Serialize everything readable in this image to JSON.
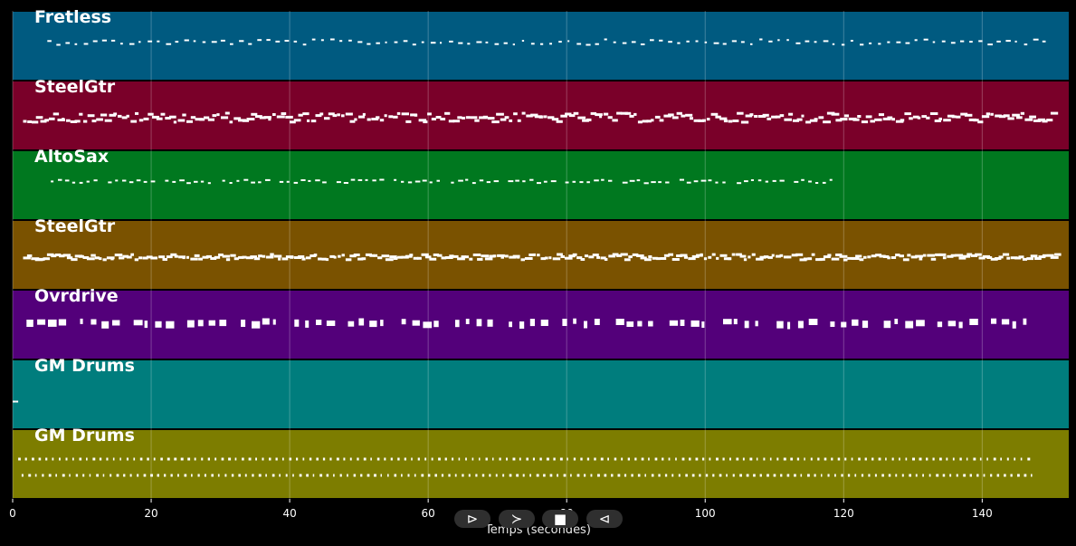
{
  "chart_data": {
    "type": "piano-roll",
    "xlabel": "Temps (secondes)",
    "xlim": [
      0,
      152.5
    ],
    "xticks": [
      0,
      20,
      40,
      60,
      80,
      100,
      120,
      140
    ],
    "grid": true,
    "tracks": [
      {
        "name": "Fretless",
        "color": "#005a80",
        "start": 5,
        "end": 150,
        "pattern": "sparse-line",
        "notes": 110
      },
      {
        "name": "SteelGtr",
        "color": "#7a0029",
        "start": 1.5,
        "end": 150.5,
        "pattern": "dense-chords",
        "notes": 240
      },
      {
        "name": "AltoSax",
        "color": "#00781f",
        "start": 5.5,
        "end": 119,
        "pattern": "phrases",
        "notes": 110
      },
      {
        "name": "SteelGtr",
        "color": "#7a5200",
        "start": 1.5,
        "end": 151,
        "pattern": "dense-line",
        "notes": 260
      },
      {
        "name": "Ovrdrive",
        "color": "#53007a",
        "start": 2,
        "end": 149,
        "pattern": "stabs",
        "notes": 95
      },
      {
        "name": "GM Drums",
        "color": "#007d7d",
        "start": 0,
        "end": 0.8,
        "pattern": "single",
        "notes": 2
      },
      {
        "name": "GM Drums",
        "color": "#7d7d00",
        "start": 0.8,
        "end": 147.5,
        "pattern": "drum-hits",
        "notes": 300
      }
    ]
  },
  "controls": {
    "play": "⊳",
    "forward": "≻",
    "stop": "■",
    "back": "⊲"
  },
  "colors": {
    "background": "#000000",
    "text": "#ffffff",
    "grid": "#ffffff"
  }
}
